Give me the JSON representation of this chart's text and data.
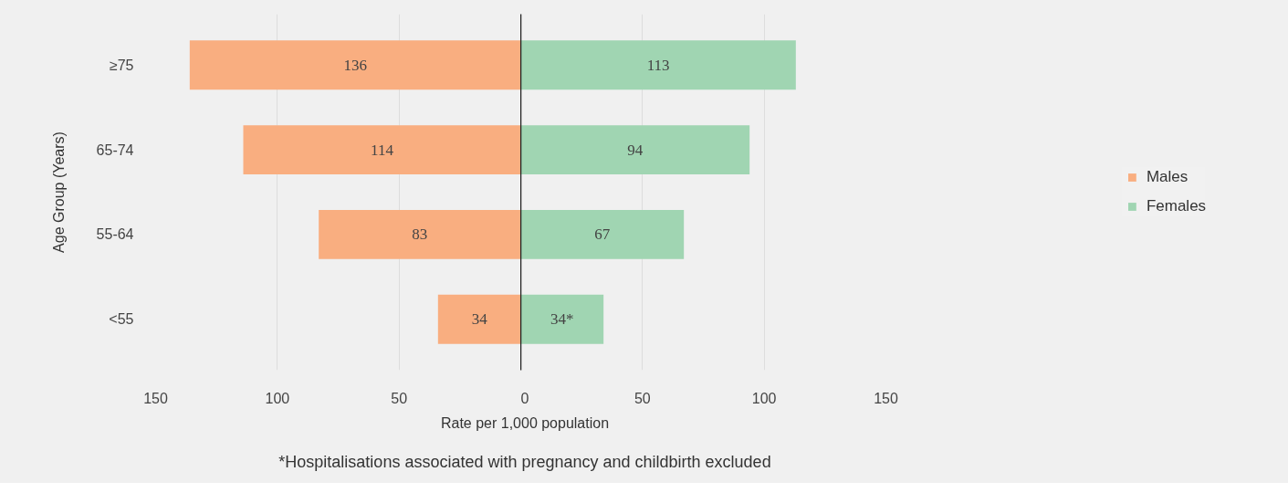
{
  "chart_data": [
    {
      "type": "bar",
      "orientation": "horizontal",
      "ylabel": "Age Group (Years)",
      "xlabel": "Rate per 1,000 population",
      "categories": [
        "≥75",
        "65-74",
        "55-64",
        "<55"
      ],
      "series": [
        {
          "name": "Males",
          "color": "#f9ae80",
          "values": [
            136,
            114,
            83,
            34
          ]
        }
      ],
      "data_labels": true,
      "xlim": [
        150,
        0
      ],
      "xticks": [
        150,
        100,
        50
      ],
      "grid": "x"
    },
    {
      "type": "bar",
      "orientation": "horizontal",
      "series": [
        {
          "name": "Females",
          "color": "#a0d5b2",
          "values": [
            113,
            94,
            67,
            34
          ],
          "value_labels": [
            "113",
            "94",
            "67",
            "34*"
          ]
        }
      ],
      "xlim": [
        0,
        150
      ],
      "xticks": [
        0,
        50,
        100,
        150
      ],
      "grid": "x",
      "tick_labels": "x",
      "legend": "right",
      "annotations": [
        "*Hospitalisations associated with pregnancy and childbirth excluded"
      ]
    }
  ]
}
